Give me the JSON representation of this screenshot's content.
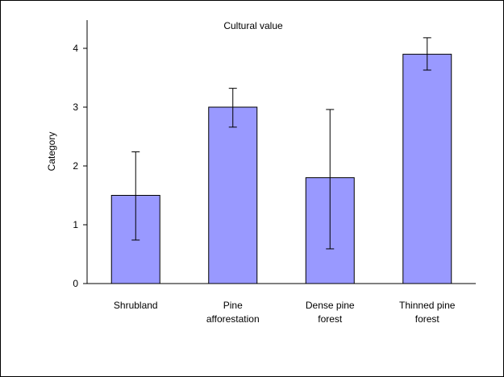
{
  "chart_data": {
    "type": "bar",
    "title": "Cultural value",
    "xlabel": "",
    "ylabel": "Category",
    "ylim": [
      0,
      4.5
    ],
    "yticks": [
      0,
      1,
      2,
      3,
      4
    ],
    "categories": [
      [
        "Shrubland"
      ],
      [
        "Pine",
        "afforestation"
      ],
      [
        "Dense pine",
        "forest"
      ],
      [
        "Thinned pine",
        "forest"
      ]
    ],
    "values": [
      1.5,
      3.0,
      1.8,
      3.9
    ],
    "error_low": [
      0.74,
      2.66,
      0.59,
      3.63
    ],
    "error_high": [
      2.24,
      3.32,
      2.96,
      4.18
    ],
    "bar_color": "#9999ff",
    "bar_edge_color": "#000000",
    "grid": false,
    "legend": "none"
  }
}
